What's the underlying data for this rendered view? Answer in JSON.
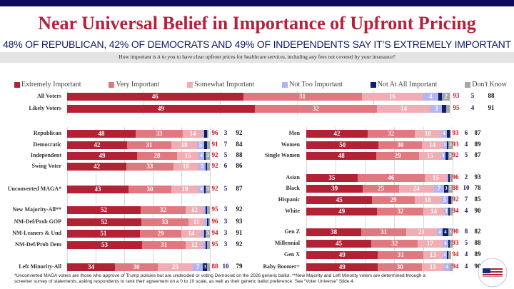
{
  "header": {
    "title": "Near Universal Belief in Importance of Upfront Pricing",
    "subtitle": "48% OF REPUBLICAN, 42% OF DEMOCRATS AND 49% OF INDEPENDENTS SAY IT’S EXTREMELY IMPORTANT",
    "question": "How important is it to you to have clear upfront prices for healthcare services, including any fees not covered by your insurance?"
  },
  "chart_data": {
    "type": "bar",
    "orientation": "horizontal-stacked",
    "legend": [
      {
        "label": "Extremely Important",
        "color": "#b22234"
      },
      {
        "label": "Very Important",
        "color": "#e07880"
      },
      {
        "label": "Somewhat Important",
        "color": "#f0adb3"
      },
      {
        "label": "Not Too Important",
        "color": "#b2b4f5"
      },
      {
        "label": "Not At All Important",
        "color": "#0c1f6b"
      },
      {
        "label": "Don't Know",
        "color": "#a6a6a6"
      }
    ],
    "summary_colors": [
      "#d4121e",
      "#14146b",
      "#111111"
    ],
    "groups": [
      {
        "panel": "wide",
        "rows": [
          {
            "label": "All Voters",
            "values": [
              46,
              31,
              16,
              4,
              1,
              2
            ],
            "summary": [
              93,
              5,
              88
            ]
          },
          {
            "label": "Likely Voters",
            "values": [
              49,
              32,
              14,
              3,
              1,
              1
            ],
            "summary": [
              95,
              4,
              91
            ]
          }
        ]
      },
      {
        "panel": "left",
        "rows": [
          {
            "label": "Republican",
            "values": [
              48,
              33,
              14,
              1,
              2,
              1
            ],
            "summary": [
              96,
              3,
              92
            ]
          },
          {
            "label": "Democratic",
            "values": [
              42,
              31,
              18,
              5,
              2,
              2
            ],
            "summary": [
              91,
              7,
              84
            ]
          },
          {
            "label": "Independent",
            "values": [
              49,
              28,
              15,
              4,
              1,
              3
            ],
            "summary": [
              92,
              5,
              88
            ]
          },
          {
            "label": "Swing Voter",
            "values": [
              42,
              33,
              18,
              5,
              1,
              2
            ],
            "summary": [
              92,
              6,
              86
            ]
          },
          {
            "label": "Unconverted MAGA*",
            "values": [
              43,
              30,
              19,
              4,
              1,
              3
            ],
            "summary": [
              92,
              5,
              87
            ]
          },
          {
            "label": "New Majority-All**",
            "values": [
              52,
              32,
              12,
              2,
              1,
              2
            ],
            "summary": [
              95,
              3,
              92
            ]
          },
          {
            "label": "NM-Def/Prob GOP",
            "values": [
              52,
              33,
              11,
              2,
              1,
              1
            ],
            "summary": [
              96,
              3,
              93
            ]
          },
          {
            "label": "NM-Leaners & Und",
            "values": [
              51,
              29,
              14,
              2,
              1,
              3
            ],
            "summary": [
              94,
              3,
              91
            ]
          },
          {
            "label": "NM-Def/Prob Dem",
            "values": [
              53,
              31,
              12,
              2,
              1,
              2
            ],
            "summary": [
              95,
              3,
              92
            ]
          },
          {
            "label": "Left Minority-All",
            "values": [
              34,
              30,
              25,
              7,
              3,
              2
            ],
            "summary": [
              88,
              10,
              79
            ]
          }
        ]
      },
      {
        "panel": "right",
        "rows": [
          {
            "label": "Men",
            "values": [
              42,
              32,
              18,
              4,
              2,
              1
            ],
            "summary": [
              93,
              6,
              87
            ]
          },
          {
            "label": "Women",
            "values": [
              50,
              30,
              14,
              3,
              1,
              3
            ],
            "summary": [
              93,
              4,
              89
            ]
          },
          {
            "label": "Single Women",
            "values": [
              48,
              29,
              15,
              3,
              2,
              3
            ],
            "summary": [
              92,
              5,
              87
            ]
          },
          {
            "label": "Asian",
            "values": [
              35,
              46,
              15,
              1,
              1,
              2
            ],
            "summary": [
              96,
              2,
              93
            ]
          },
          {
            "label": "Black",
            "values": [
              39,
              25,
              24,
              7,
              3,
              3
            ],
            "summary": [
              88,
              10,
              78
            ]
          },
          {
            "label": "Hispanic",
            "values": [
              45,
              29,
              18,
              5,
              2,
              1
            ],
            "summary": [
              92,
              7,
              85
            ]
          },
          {
            "label": "White",
            "values": [
              49,
              32,
              14,
              3,
              1,
              2
            ],
            "summary": [
              94,
              4,
              90
            ]
          },
          {
            "label": "Gen Z",
            "values": [
              38,
              31,
              21,
              4,
              4,
              3
            ],
            "summary": [
              90,
              8,
              82
            ]
          },
          {
            "label": "Millennial",
            "values": [
              45,
              32,
              17,
              4,
              1,
              2
            ],
            "summary": [
              93,
              5,
              88
            ]
          },
          {
            "label": "Gen X",
            "values": [
              49,
              31,
              13,
              3,
              1,
              2
            ],
            "summary": [
              94,
              4,
              89
            ]
          },
          {
            "label": "Baby Boomer+",
            "values": [
              49,
              30,
              15,
              4,
              0,
              2
            ],
            "summary": [
              94,
              4,
              90
            ]
          }
        ]
      }
    ]
  },
  "footnote": "*Unconverted MAGA voters are those who approve of Trump policies but are undecided or voting Democrat on the 2026 generic ballot. **New Majority and Left Minority voters are determined through a screener survey of statements, asking respondents to rank their agreement on a 0 to 10 scale, as well as their generic ballot preference. See “Voter Universe” Slide 4.",
  "logo_text": "America's New Majority Project"
}
